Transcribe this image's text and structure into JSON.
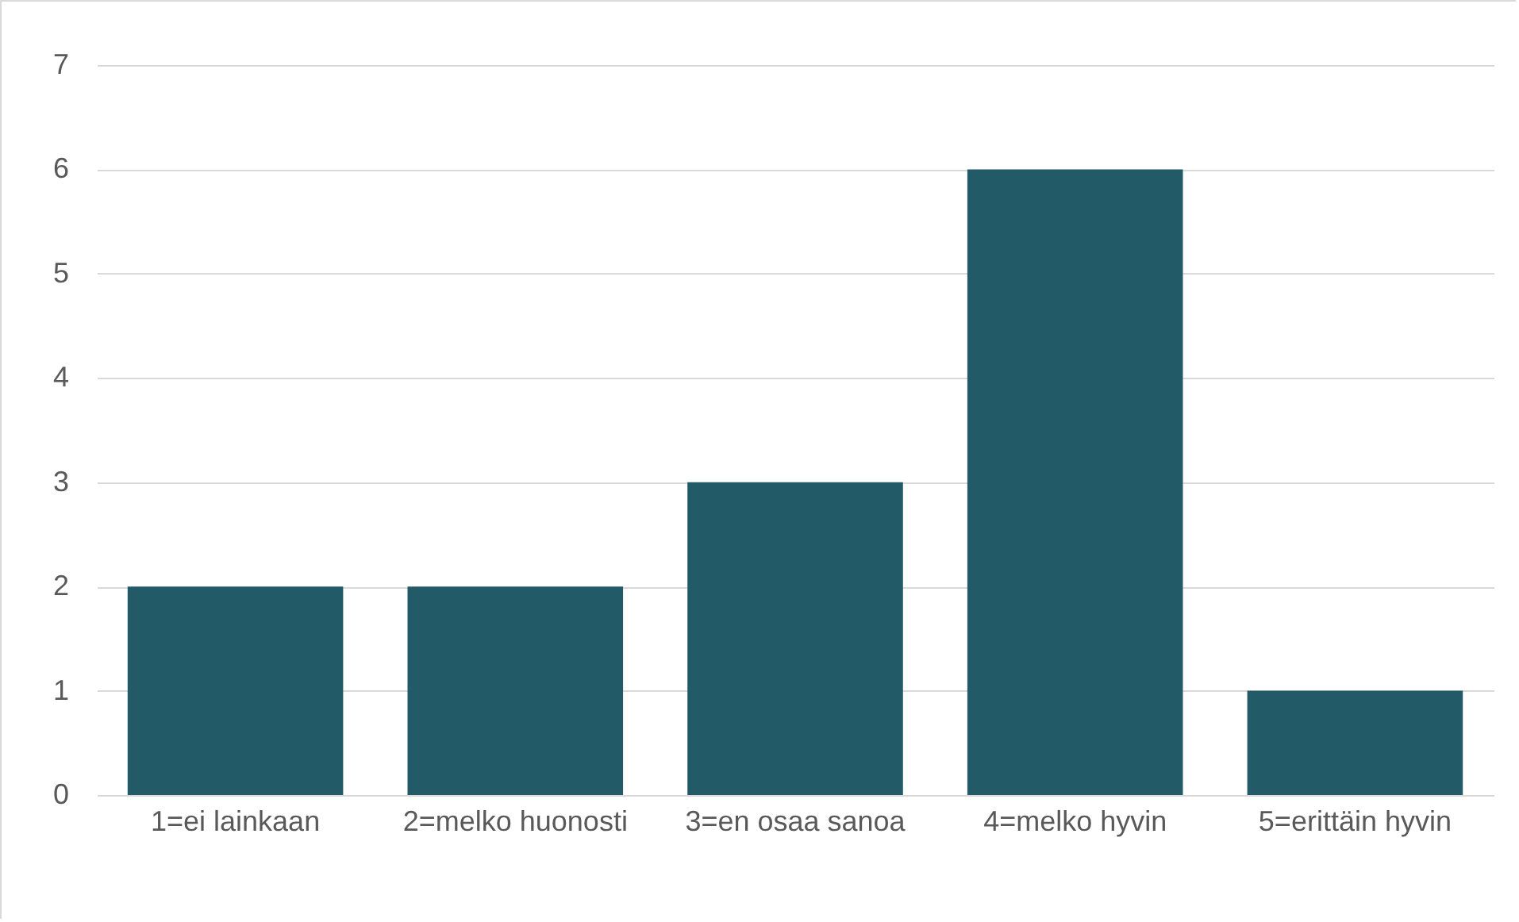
{
  "chart_data": {
    "type": "bar",
    "categories": [
      "1=ei lainkaan",
      "2=melko huonosti",
      "3=en osaa sanoa",
      "4=melko hyvin",
      "5=erittäin hyvin"
    ],
    "values": [
      2,
      2,
      3,
      6,
      1
    ],
    "color": "#225a68",
    "ylim": [
      0,
      7
    ],
    "yticks": [
      0,
      1,
      2,
      3,
      4,
      5,
      6,
      7
    ],
    "grid": "y"
  }
}
